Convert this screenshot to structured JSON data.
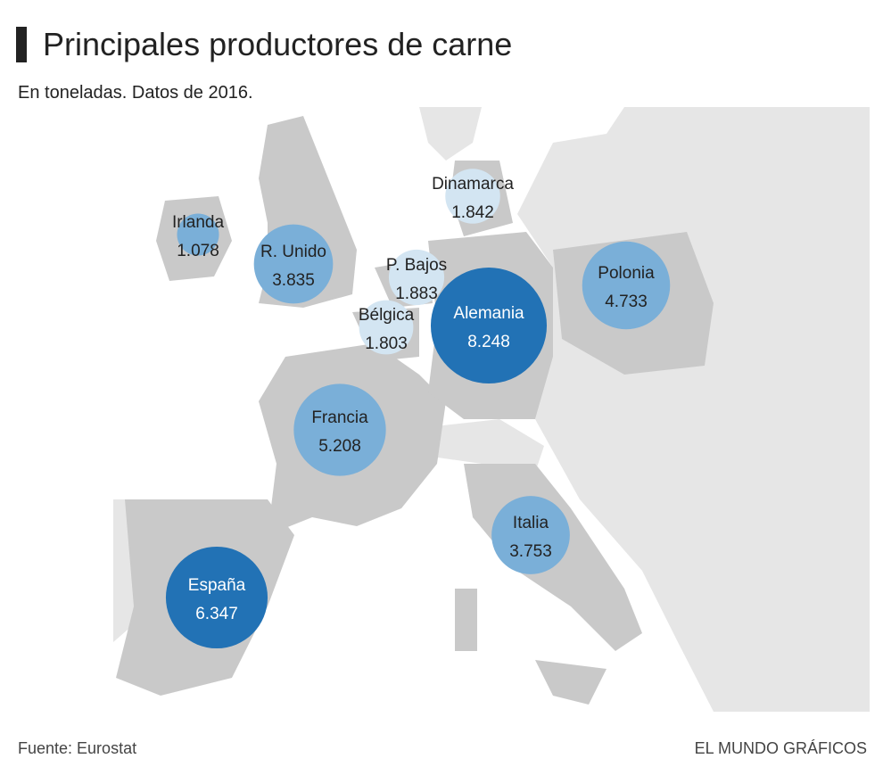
{
  "header": {
    "title": "Principales productores de carne",
    "subtitle": "En toneladas. Datos de 2016."
  },
  "bubbles": [
    {
      "name": "Irlanda",
      "value": 1078,
      "value_label": "1.078",
      "color": "#7aafd8"
    },
    {
      "name": "R. Unido",
      "value": 3835,
      "value_label": "3.835",
      "color": "#7aafd8"
    },
    {
      "name": "Dinamarca",
      "value": 1842,
      "value_label": "1.842",
      "color": "#d3e5f2"
    },
    {
      "name": "P. Bajos",
      "value": 1883,
      "value_label": "1.883",
      "color": "#d3e5f2"
    },
    {
      "name": "Bélgica",
      "value": 1803,
      "value_label": "1.803",
      "color": "#d3e5f2"
    },
    {
      "name": "Alemania",
      "value": 8248,
      "value_label": "8.248",
      "color": "#2272b5"
    },
    {
      "name": "Polonia",
      "value": 4733,
      "value_label": "4.733",
      "color": "#7aafd8"
    },
    {
      "name": "Francia",
      "value": 5208,
      "value_label": "5.208",
      "color": "#7aafd8"
    },
    {
      "name": "Italia",
      "value": 3753,
      "value_label": "3.753",
      "color": "#7aafd8"
    },
    {
      "name": "España",
      "value": 6347,
      "value_label": "6.347",
      "color": "#2272b5"
    }
  ],
  "footer": {
    "source": "Fuente: Eurostat",
    "credit": "EL MUNDO GRÁFICOS"
  }
}
